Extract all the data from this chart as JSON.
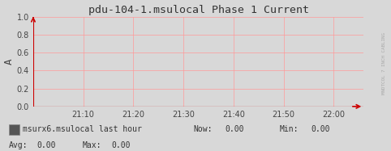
{
  "title": "pdu-104-1.msulocal Phase 1 Current",
  "ylabel": "A",
  "ylim": [
    0.0,
    1.0
  ],
  "yticks": [
    0.0,
    0.2,
    0.4,
    0.6,
    0.8,
    1.0
  ],
  "ytick_labels": [
    "0.0",
    "0.2",
    "0.4",
    "0.6",
    "0.8",
    "1.0"
  ],
  "xtick_labels": [
    "21:10",
    "21:20",
    "21:30",
    "21:40",
    "21:50",
    "22:00"
  ],
  "xtick_positions": [
    1,
    2,
    3,
    4,
    5,
    6
  ],
  "xlim": [
    0.0,
    6.6
  ],
  "background_color": "#d8d8d8",
  "plot_bg_color": "#d8d8d8",
  "grid_color": "#ff9999",
  "line_color": "#cc0000",
  "arrow_color": "#cc0000",
  "title_fontsize": 9.5,
  "axis_fontsize": 7,
  "legend_label": "msurx6.msulocal last hour",
  "legend_box_color": "#555555",
  "stats_now": "0.00",
  "stats_min": "0.00",
  "stats_avg": "0.00",
  "stats_max": "0.00",
  "right_label": "MNDTCOL 7 INCH CABLING",
  "font_family": "monospace"
}
